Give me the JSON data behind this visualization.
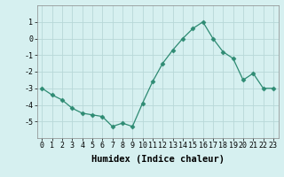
{
  "x": [
    0,
    1,
    2,
    3,
    4,
    5,
    6,
    7,
    8,
    9,
    10,
    11,
    12,
    13,
    14,
    15,
    16,
    17,
    18,
    19,
    20,
    21,
    22,
    23
  ],
  "y": [
    -3.0,
    -3.4,
    -3.7,
    -4.2,
    -4.5,
    -4.6,
    -4.7,
    -5.3,
    -5.1,
    -5.3,
    -3.9,
    -2.6,
    -1.5,
    -0.7,
    0.0,
    0.6,
    1.0,
    0.0,
    -0.8,
    -1.2,
    -2.5,
    -2.1,
    -3.0,
    -3.0
  ],
  "line_color": "#2e8b73",
  "marker": "D",
  "marker_size": 2.5,
  "bg_color": "#d6f0f0",
  "grid_color": "#b8d8d8",
  "xlabel": "Humidex (Indice chaleur)",
  "xlim": [
    -0.5,
    23.5
  ],
  "ylim": [
    -6.0,
    2.0
  ],
  "yticks": [
    -5,
    -4,
    -3,
    -2,
    -1,
    0,
    1
  ],
  "xticks": [
    0,
    1,
    2,
    3,
    4,
    5,
    6,
    7,
    8,
    9,
    10,
    11,
    12,
    13,
    14,
    15,
    16,
    17,
    18,
    19,
    20,
    21,
    22,
    23
  ],
  "title_fontsize": 9,
  "label_fontsize": 7.5,
  "tick_fontsize": 6.0,
  "ylabel_fontsize": 7
}
